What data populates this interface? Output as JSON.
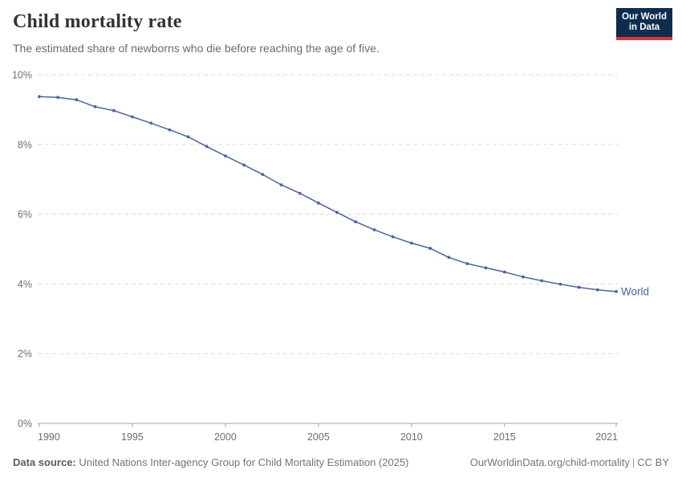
{
  "header": {
    "title": "Child mortality rate",
    "subtitle": "The estimated share of newborns who die before reaching the age of five.",
    "logo": {
      "line1": "Our World",
      "line2": "in Data",
      "bg_color": "#0d2d4e",
      "accent_color": "#d8353d"
    }
  },
  "chart_data": {
    "type": "line",
    "title": "Child mortality rate",
    "xlabel": "",
    "ylabel": "",
    "xlim": [
      1990,
      2021
    ],
    "ylim": [
      0,
      10
    ],
    "grid": "horizontal-dashed",
    "legend_position": "end-of-line-label",
    "xticks": [
      1990,
      1995,
      2000,
      2005,
      2010,
      2015,
      2021
    ],
    "yticks": [
      0,
      2,
      4,
      6,
      8,
      10
    ],
    "ytick_suffix": "%",
    "x": [
      1990,
      1991,
      1992,
      1993,
      1994,
      1995,
      1996,
      1997,
      1998,
      1999,
      2000,
      2001,
      2002,
      2003,
      2004,
      2005,
      2006,
      2007,
      2008,
      2009,
      2010,
      2011,
      2012,
      2013,
      2014,
      2015,
      2016,
      2017,
      2018,
      2019,
      2020,
      2021
    ],
    "series": [
      {
        "name": "World",
        "color": "#4865a3",
        "values": [
          9.37,
          9.35,
          9.28,
          9.08,
          8.97,
          8.79,
          8.61,
          8.42,
          8.22,
          7.94,
          7.67,
          7.41,
          7.14,
          6.84,
          6.6,
          6.32,
          6.05,
          5.78,
          5.55,
          5.35,
          5.17,
          5.02,
          4.76,
          4.58,
          4.46,
          4.34,
          4.2,
          4.09,
          3.99,
          3.9,
          3.83,
          3.78
        ]
      }
    ],
    "end_label": "World",
    "colors": {
      "gridline": "#dcdcdc",
      "axis": "#a3a3a3",
      "tick_label": "#6e6e6e",
      "line": "#4865a3"
    }
  },
  "footer": {
    "datasource_label": "Data source:",
    "datasource_text": "United Nations Inter-agency Group for Child Mortality Estimation (2025)",
    "link": "OurWorldinData.org/child-mortality",
    "separator": "|",
    "license": "CC BY"
  }
}
